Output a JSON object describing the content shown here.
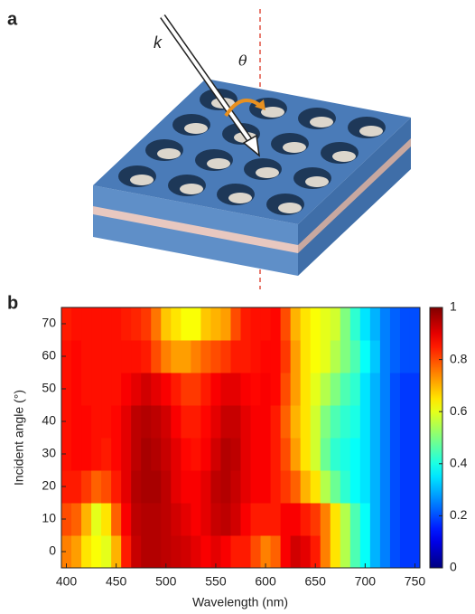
{
  "panel_a": {
    "panel_label": "a",
    "wave_vector_label": "k",
    "angle_label": "θ"
  },
  "chart_data": {
    "type": "heatmap",
    "panel_label": "b",
    "xlabel": "Wavelength (nm)",
    "ylabel": "Incident angle (°)",
    "x": [
      400,
      410,
      420,
      430,
      440,
      450,
      460,
      470,
      480,
      490,
      500,
      510,
      520,
      530,
      540,
      550,
      560,
      570,
      580,
      590,
      600,
      610,
      620,
      630,
      640,
      650,
      660,
      670,
      680,
      690,
      700,
      710,
      720,
      730,
      740,
      750
    ],
    "y": [
      0,
      10,
      20,
      30,
      40,
      50,
      60,
      70
    ],
    "z": [
      [
        0.75,
        0.72,
        0.65,
        0.62,
        0.6,
        0.7,
        0.85,
        0.93,
        0.95,
        0.95,
        0.94,
        0.93,
        0.92,
        0.9,
        0.88,
        0.9,
        0.88,
        0.85,
        0.85,
        0.8,
        0.75,
        0.78,
        0.88,
        0.92,
        0.9,
        0.85,
        0.75,
        0.65,
        0.55,
        0.45,
        0.38,
        0.3,
        0.25,
        0.2,
        0.18,
        0.18
      ],
      [
        0.8,
        0.78,
        0.7,
        0.6,
        0.65,
        0.78,
        0.88,
        0.94,
        0.95,
        0.95,
        0.94,
        0.92,
        0.9,
        0.88,
        0.9,
        0.93,
        0.94,
        0.92,
        0.88,
        0.85,
        0.85,
        0.85,
        0.88,
        0.88,
        0.85,
        0.82,
        0.75,
        0.65,
        0.55,
        0.45,
        0.38,
        0.3,
        0.25,
        0.2,
        0.18,
        0.18
      ],
      [
        0.85,
        0.85,
        0.82,
        0.78,
        0.8,
        0.85,
        0.9,
        0.95,
        0.96,
        0.96,
        0.94,
        0.9,
        0.88,
        0.88,
        0.9,
        0.94,
        0.95,
        0.93,
        0.9,
        0.88,
        0.88,
        0.85,
        0.82,
        0.78,
        0.7,
        0.65,
        0.55,
        0.48,
        0.42,
        0.38,
        0.35,
        0.3,
        0.25,
        0.2,
        0.18,
        0.18
      ],
      [
        0.86,
        0.87,
        0.87,
        0.86,
        0.85,
        0.87,
        0.9,
        0.94,
        0.96,
        0.95,
        0.93,
        0.9,
        0.87,
        0.86,
        0.88,
        0.92,
        0.95,
        0.94,
        0.9,
        0.88,
        0.88,
        0.85,
        0.8,
        0.72,
        0.65,
        0.58,
        0.48,
        0.42,
        0.4,
        0.38,
        0.35,
        0.3,
        0.25,
        0.2,
        0.18,
        0.18
      ],
      [
        0.86,
        0.87,
        0.87,
        0.86,
        0.86,
        0.87,
        0.9,
        0.94,
        0.95,
        0.94,
        0.92,
        0.88,
        0.85,
        0.85,
        0.87,
        0.9,
        0.93,
        0.93,
        0.9,
        0.88,
        0.88,
        0.85,
        0.78,
        0.7,
        0.65,
        0.58,
        0.5,
        0.45,
        0.42,
        0.4,
        0.35,
        0.3,
        0.25,
        0.2,
        0.18,
        0.18
      ],
      [
        0.86,
        0.87,
        0.86,
        0.86,
        0.86,
        0.86,
        0.88,
        0.9,
        0.92,
        0.9,
        0.88,
        0.85,
        0.82,
        0.82,
        0.85,
        0.88,
        0.9,
        0.9,
        0.88,
        0.87,
        0.88,
        0.87,
        0.8,
        0.72,
        0.65,
        0.6,
        0.55,
        0.5,
        0.45,
        0.42,
        0.35,
        0.3,
        0.25,
        0.2,
        0.18,
        0.18
      ],
      [
        0.86,
        0.87,
        0.86,
        0.86,
        0.86,
        0.86,
        0.86,
        0.86,
        0.85,
        0.8,
        0.75,
        0.72,
        0.72,
        0.75,
        0.78,
        0.8,
        0.82,
        0.85,
        0.85,
        0.86,
        0.87,
        0.87,
        0.82,
        0.72,
        0.65,
        0.62,
        0.6,
        0.55,
        0.5,
        0.45,
        0.38,
        0.32,
        0.25,
        0.22,
        0.2,
        0.2
      ],
      [
        0.85,
        0.86,
        0.86,
        0.86,
        0.86,
        0.86,
        0.85,
        0.84,
        0.82,
        0.76,
        0.68,
        0.65,
        0.62,
        0.62,
        0.68,
        0.7,
        0.72,
        0.8,
        0.85,
        0.86,
        0.86,
        0.87,
        0.8,
        0.7,
        0.65,
        0.62,
        0.6,
        0.58,
        0.5,
        0.42,
        0.35,
        0.3,
        0.25,
        0.22,
        0.2,
        0.2
      ]
    ],
    "xlim": [
      395,
      755
    ],
    "ylim": [
      -5,
      75
    ],
    "xticks": [
      400,
      450,
      500,
      550,
      600,
      650,
      700,
      750
    ],
    "yticks": [
      0,
      10,
      20,
      30,
      40,
      50,
      60,
      70
    ],
    "colormap": "jet",
    "clim": [
      0,
      1
    ],
    "cticks": [
      0,
      0.2,
      0.4,
      0.6,
      0.8,
      1
    ]
  }
}
